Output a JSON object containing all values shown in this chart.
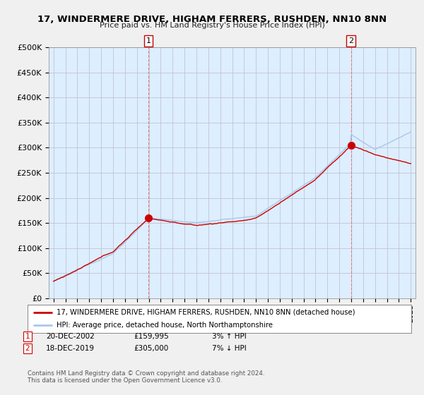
{
  "title_line1": "17, WINDERMERE DRIVE, HIGHAM FERRERS, RUSHDEN, NN10 8NN",
  "title_line2": "Price paid vs. HM Land Registry's House Price Index (HPI)",
  "ylabel_ticks": [
    "£0",
    "£50K",
    "£100K",
    "£150K",
    "£200K",
    "£250K",
    "£300K",
    "£350K",
    "£400K",
    "£450K",
    "£500K"
  ],
  "ytick_values": [
    0,
    50000,
    100000,
    150000,
    200000,
    250000,
    300000,
    350000,
    400000,
    450000,
    500000
  ],
  "xlim_start": 1994.6,
  "xlim_end": 2025.4,
  "ylim_min": 0,
  "ylim_max": 500000,
  "hpi_color": "#a8c8e8",
  "price_color": "#cc0000",
  "dashed_color": "#e08080",
  "plot_bg_color": "#ddeeff",
  "transaction1_year": 2002.97,
  "transaction1_price": 159995,
  "transaction1_label": "1",
  "transaction1_date": "20-DEC-2002",
  "transaction1_price_str": "£159,995",
  "transaction1_hpi": "3% ↑ HPI",
  "transaction2_year": 2019.97,
  "transaction2_price": 305000,
  "transaction2_label": "2",
  "transaction2_date": "18-DEC-2019",
  "transaction2_price_str": "£305,000",
  "transaction2_hpi": "7% ↓ HPI",
  "legend_line1": "17, WINDERMERE DRIVE, HIGHAM FERRERS, RUSHDEN, NN10 8NN (detached house)",
  "legend_line2": "HPI: Average price, detached house, North Northamptonshire",
  "footer_line1": "Contains HM Land Registry data © Crown copyright and database right 2024.",
  "footer_line2": "This data is licensed under the Open Government Licence v3.0.",
  "background_color": "#f0f0f0",
  "fig_width": 6.0,
  "fig_height": 5.6,
  "dpi": 100
}
